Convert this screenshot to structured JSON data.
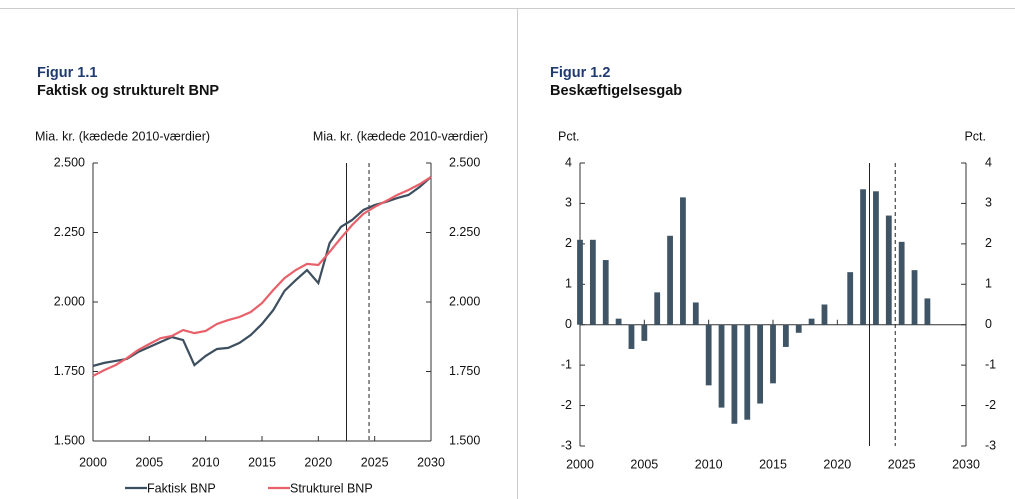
{
  "chart_data": [
    {
      "type": "line",
      "figure": "Figur 1.1",
      "title": "Faktisk og strukturelt BNP",
      "ylabel": "Mia. kr. (kædede 2010-værdier)",
      "y2label": "Mia. kr. (kædede 2010-værdier)",
      "x": [
        2000,
        2001,
        2002,
        2003,
        2004,
        2005,
        2006,
        2007,
        2008,
        2009,
        2010,
        2011,
        2012,
        2013,
        2014,
        2015,
        2016,
        2017,
        2018,
        2019,
        2020,
        2021,
        2022,
        2023,
        2024,
        2025,
        2026,
        2027,
        2028,
        2029,
        2030
      ],
      "series": [
        {
          "name": "Faktisk BNP",
          "color": "#3d4f5f",
          "values": [
            1770,
            1781,
            1788,
            1795,
            1820,
            1838,
            1856,
            1874,
            1863,
            1773,
            1806,
            1831,
            1835,
            1853,
            1881,
            1921,
            1971,
            2040,
            2079,
            2115,
            2068,
            2212,
            2270,
            2295,
            2331,
            2349,
            2360,
            2374,
            2385,
            2414,
            2450
          ]
        },
        {
          "name": "Strukturel BNP",
          "color": "#e8616a",
          "values": [
            1734,
            1755,
            1773,
            1798,
            1827,
            1849,
            1870,
            1878,
            1899,
            1888,
            1896,
            1921,
            1935,
            1946,
            1964,
            1996,
            2043,
            2086,
            2115,
            2137,
            2133,
            2180,
            2230,
            2277,
            2317,
            2342,
            2363,
            2385,
            2403,
            2424,
            2450
          ]
        }
      ],
      "xlim": [
        2000,
        2030
      ],
      "xticks": [
        2000,
        2005,
        2010,
        2015,
        2020,
        2025,
        2030
      ],
      "ylim": [
        1500,
        2500
      ],
      "yticks": [
        {
          "value": 1500,
          "label": "1.500"
        },
        {
          "value": 1750,
          "label": "1.750"
        },
        {
          "value": 2000,
          "label": "2.000"
        },
        {
          "value": 2250,
          "label": "2.250"
        },
        {
          "value": 2500,
          "label": "2.500"
        }
      ],
      "y2lim": [
        1500,
        2500
      ],
      "y2ticks": [
        {
          "value": 1500,
          "label": "1.500"
        },
        {
          "value": 1750,
          "label": "1.750"
        },
        {
          "value": 2000,
          "label": "2.000"
        },
        {
          "value": 2250,
          "label": "2.250"
        },
        {
          "value": 2500,
          "label": "2.500"
        }
      ],
      "vlines": [
        {
          "value": 2022.5,
          "style": "solid"
        },
        {
          "value": 2024.5,
          "style": "dashed"
        }
      ],
      "legend": "bottom"
    },
    {
      "type": "bar",
      "figure": "Figur 1.2",
      "title": "Beskæftigelsesgab",
      "ylabel": "Pct.",
      "y2label": "Pct.",
      "x": [
        2000,
        2001,
        2002,
        2003,
        2004,
        2005,
        2006,
        2007,
        2008,
        2009,
        2010,
        2011,
        2012,
        2013,
        2014,
        2015,
        2016,
        2017,
        2018,
        2019,
        2020,
        2021,
        2022,
        2023,
        2024,
        2025,
        2026,
        2027
      ],
      "values": [
        2.1,
        2.1,
        1.6,
        0.15,
        -0.6,
        -0.4,
        0.8,
        2.2,
        3.15,
        0.55,
        -1.5,
        -2.05,
        -2.45,
        -2.35,
        -1.95,
        -1.45,
        -0.55,
        -0.2,
        0.15,
        0.5,
        0,
        1.3,
        3.35,
        3.3,
        2.7,
        2.05,
        1.35,
        0.65
      ],
      "color": "#3f5566",
      "xlim": [
        2000,
        2030
      ],
      "xticks": [
        2000,
        2005,
        2010,
        2015,
        2020,
        2025,
        2030
      ],
      "ylim": [
        -3,
        4
      ],
      "yticks": [
        -3,
        -2,
        -1,
        0,
        1,
        2,
        3,
        4
      ],
      "y2lim": [
        -3,
        4
      ],
      "y2ticks": [
        -3,
        -2,
        -1,
        0,
        1,
        2,
        3,
        4
      ],
      "vlines": [
        {
          "value": 2022.5,
          "style": "solid"
        },
        {
          "value": 2024.5,
          "style": "dashed"
        }
      ]
    }
  ]
}
